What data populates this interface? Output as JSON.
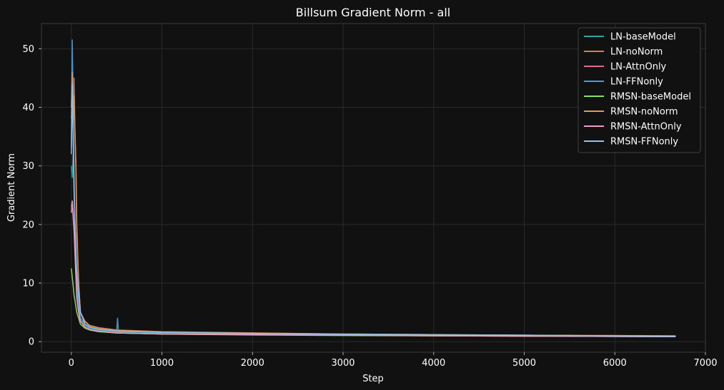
{
  "chart_data": {
    "type": "line",
    "title": "Billsum Gradient Norm - all",
    "xlabel": "Step",
    "ylabel": "Gradient Norm",
    "xlim": [
      -330,
      7000
    ],
    "ylim": [
      -1.8,
      54.3
    ],
    "xticks": [
      0,
      1000,
      2000,
      3000,
      4000,
      5000,
      6000,
      7000
    ],
    "yticks": [
      0,
      10,
      20,
      30,
      40,
      50
    ],
    "grid": true,
    "legend_position": "top-right",
    "background": "#111111",
    "series": [
      {
        "name": "LN-baseModel",
        "color": "#2ca6a4",
        "x": [
          0,
          10,
          20,
          30,
          40,
          50,
          60,
          80,
          100,
          150,
          200,
          300,
          500,
          1000,
          2000,
          3000,
          4000,
          5000,
          6000,
          6670
        ],
        "y": [
          30,
          28,
          32,
          26,
          20,
          14,
          9,
          6,
          4,
          2.8,
          2.3,
          2.0,
          1.7,
          1.5,
          1.3,
          1.2,
          1.1,
          1.05,
          1.0,
          0.95
        ]
      },
      {
        "name": "LN-noNorm",
        "color": "#e07b4c",
        "x": [
          0,
          10,
          20,
          30,
          40,
          50,
          60,
          80,
          100,
          150,
          200,
          300,
          500,
          1000,
          2000,
          3000,
          4000,
          5000,
          6000,
          6670
        ],
        "y": [
          38,
          44,
          36,
          45,
          35,
          30,
          18,
          10,
          5,
          3.5,
          2.8,
          2.4,
          2.0,
          1.7,
          1.5,
          1.3,
          1.2,
          1.1,
          1.05,
          1.0
        ]
      },
      {
        "name": "LN-AttnOnly",
        "color": "#e0689c",
        "x": [
          0,
          10,
          20,
          30,
          40,
          50,
          60,
          80,
          100,
          150,
          200,
          300,
          500,
          1000,
          2000,
          3000,
          4000,
          5000,
          6000,
          6670
        ],
        "y": [
          23,
          24,
          22,
          20,
          16,
          12,
          8,
          5,
          3.5,
          2.5,
          2.1,
          1.8,
          1.5,
          1.3,
          1.2,
          1.1,
          1.0,
          0.95,
          0.9,
          0.85
        ]
      },
      {
        "name": "LN-FFNonly",
        "color": "#4a9fe0",
        "x": [
          0,
          10,
          20,
          30,
          40,
          50,
          60,
          80,
          100,
          150,
          200,
          300,
          500,
          510,
          520,
          1000,
          2000,
          3000,
          4000,
          5000,
          6000,
          6670
        ],
        "y": [
          33,
          51.5,
          40,
          28,
          20,
          15,
          10,
          6,
          4,
          2.9,
          2.4,
          2.1,
          1.8,
          4.0,
          1.8,
          1.6,
          1.4,
          1.25,
          1.15,
          1.1,
          1.0,
          0.95
        ]
      },
      {
        "name": "RMSN-baseModel",
        "color": "#8fe05a",
        "x": [
          0,
          10,
          20,
          30,
          40,
          50,
          60,
          80,
          100,
          150,
          200,
          300,
          500,
          1000,
          2000,
          3000,
          4000,
          5000,
          6000,
          6670
        ],
        "y": [
          12.5,
          11,
          9.5,
          8,
          7,
          6,
          5,
          4,
          3,
          2.3,
          2.0,
          1.7,
          1.5,
          1.3,
          1.15,
          1.05,
          1.0,
          0.95,
          0.9,
          0.85
        ]
      },
      {
        "name": "RMSN-noNorm",
        "color": "#e09a5a",
        "x": [
          0,
          10,
          20,
          30,
          40,
          50,
          60,
          80,
          100,
          150,
          200,
          300,
          500,
          1000,
          2000,
          3000,
          4000,
          5000,
          6000,
          6670
        ],
        "y": [
          40,
          46,
          38,
          42,
          36,
          30,
          20,
          10,
          5,
          3.4,
          2.7,
          2.3,
          1.9,
          1.6,
          1.45,
          1.3,
          1.2,
          1.1,
          1.0,
          0.95
        ]
      },
      {
        "name": "RMSN-AttnOnly",
        "color": "#f09cc8",
        "x": [
          0,
          10,
          20,
          30,
          40,
          50,
          60,
          80,
          100,
          150,
          200,
          300,
          500,
          1000,
          2000,
          3000,
          4000,
          5000,
          6000,
          6670
        ],
        "y": [
          22,
          24,
          21,
          19,
          15,
          11,
          7.5,
          5,
          3.5,
          2.5,
          2.1,
          1.8,
          1.5,
          1.3,
          1.2,
          1.1,
          1.0,
          0.95,
          0.9,
          0.85
        ]
      },
      {
        "name": "RMSN-FFNonly",
        "color": "#8cc4f0",
        "x": [
          0,
          10,
          20,
          30,
          40,
          50,
          60,
          80,
          100,
          150,
          200,
          300,
          500,
          1000,
          2000,
          3000,
          4000,
          5000,
          6000,
          6670
        ],
        "y": [
          32,
          44,
          34,
          26,
          20,
          15,
          12,
          8,
          5,
          3.0,
          2.5,
          2.1,
          1.8,
          1.6,
          1.4,
          1.25,
          1.15,
          1.1,
          1.0,
          0.95
        ]
      }
    ]
  }
}
